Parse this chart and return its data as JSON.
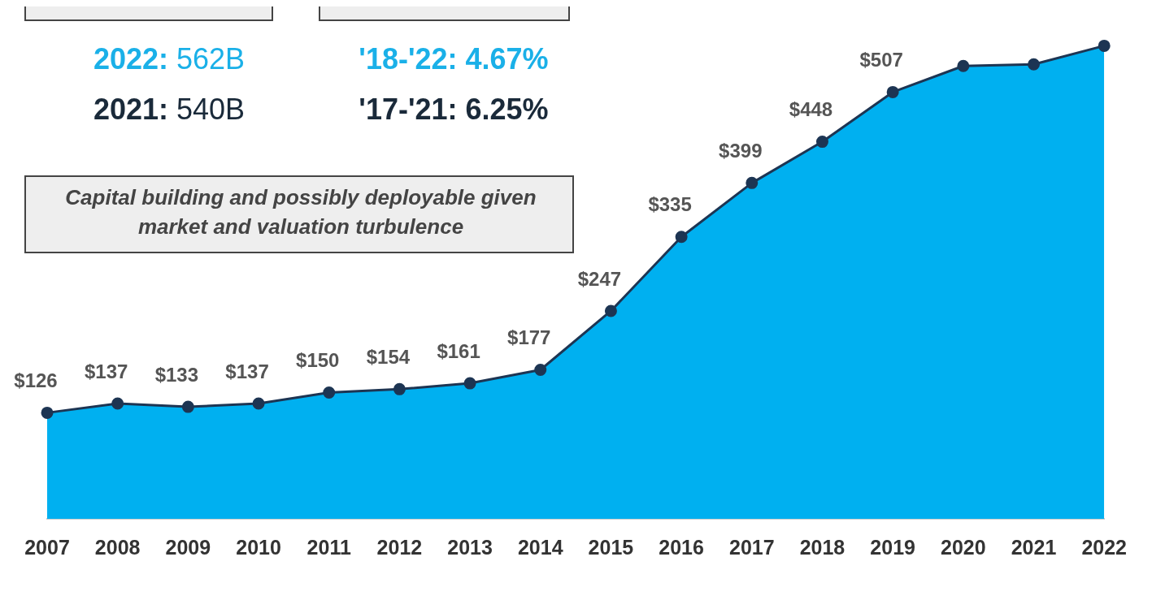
{
  "chart_data": {
    "type": "area",
    "categories": [
      "2007",
      "2008",
      "2009",
      "2010",
      "2011",
      "2012",
      "2013",
      "2014",
      "2015",
      "2016",
      "2017",
      "2018",
      "2019",
      "2020",
      "2021",
      "2022"
    ],
    "series": [
      {
        "color": "#00b0f0",
        "values": [
          126,
          137,
          133,
          137,
          150,
          154,
          161,
          177,
          247,
          335,
          399,
          448,
          507,
          538,
          540,
          562
        ],
        "value_labels": [
          "$126",
          "$137",
          "$133",
          "$137",
          "$150",
          "$154",
          "$161",
          "$177",
          "$247",
          "$335",
          "$399",
          "$448",
          "$507",
          null,
          null,
          null
        ]
      }
    ],
    "marker": "circle",
    "grid": false,
    "legend": false,
    "tick_labels": "x",
    "annotations": [
      "2022: 562B",
      "2021: 540B",
      "'18-'22: 4.67%",
      "'17-'21: 6.25%",
      "Capital building and possibly deployable given market and valuation turbulence"
    ]
  }
}
